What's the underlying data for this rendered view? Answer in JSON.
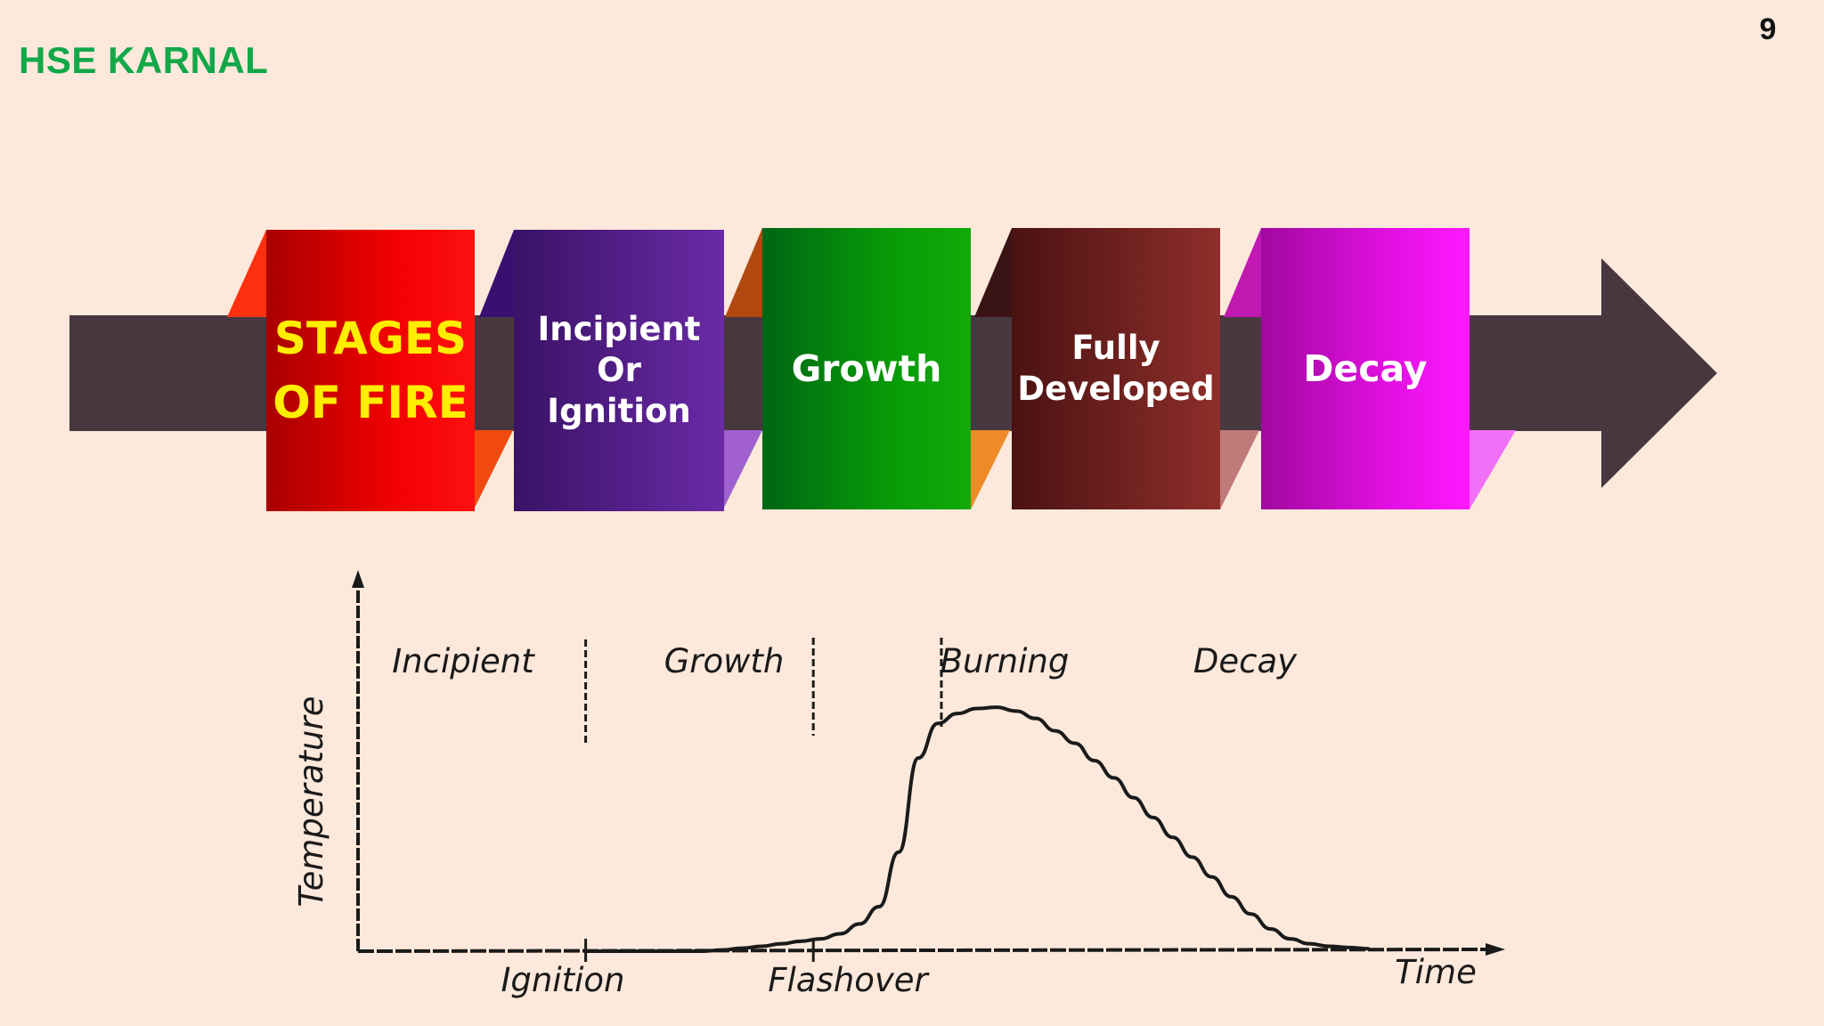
{
  "slide": {
    "brand": "HSE KARNAL",
    "page_number": "9"
  },
  "stages_band": {
    "title_lines": [
      "STAGES",
      "OF FIRE"
    ],
    "stages": [
      {
        "lines": [
          "Incipient",
          "Or",
          "Ignition"
        ],
        "color": "#5a2390"
      },
      {
        "lines": [
          "Growth"
        ],
        "color": "#0a8a0a"
      },
      {
        "lines": [
          "Fully",
          "Developed"
        ],
        "color": "#7a2220"
      },
      {
        "lines": [
          "Decay"
        ],
        "color": "#d010d8"
      }
    ],
    "title_color": "#e80000",
    "arrow_color": "#473840"
  },
  "chart_data": {
    "type": "line",
    "ylabel": "Temperature",
    "xlabel": "Time",
    "phases": [
      "Incipient",
      "Growth",
      "Burning",
      "Decay"
    ],
    "x_markers": [
      "Ignition",
      "Flashover"
    ],
    "x": [
      0,
      0.5,
      1,
      1.5,
      2,
      2.5,
      3,
      3.5,
      4,
      4.5,
      5,
      5.5,
      6,
      6.5,
      7,
      7.5,
      8,
      8.5,
      9,
      9.5,
      10,
      10.5,
      11,
      11.5,
      12,
      12.5,
      13,
      13.5,
      14,
      14.5,
      15,
      15.5,
      16,
      16.5,
      17,
      17.5,
      18,
      18.5,
      19,
      19.5,
      20
    ],
    "values": [
      0,
      0,
      0,
      0,
      0,
      0,
      0,
      0.5,
      1.2,
      2,
      3,
      4,
      5,
      7,
      11,
      18,
      40,
      78,
      92,
      96,
      98,
      98.5,
      97,
      94,
      89,
      84,
      77,
      70,
      62,
      54,
      46,
      38,
      30,
      22,
      15,
      9,
      5,
      3,
      2,
      1.5,
      1
    ],
    "phase_boundaries_x": [
      8,
      16,
      20.5
    ],
    "marker_x": [
      8,
      16
    ],
    "curve_end_x": 35.5,
    "x_axis_end": 40,
    "ylim": [
      0,
      115
    ]
  }
}
